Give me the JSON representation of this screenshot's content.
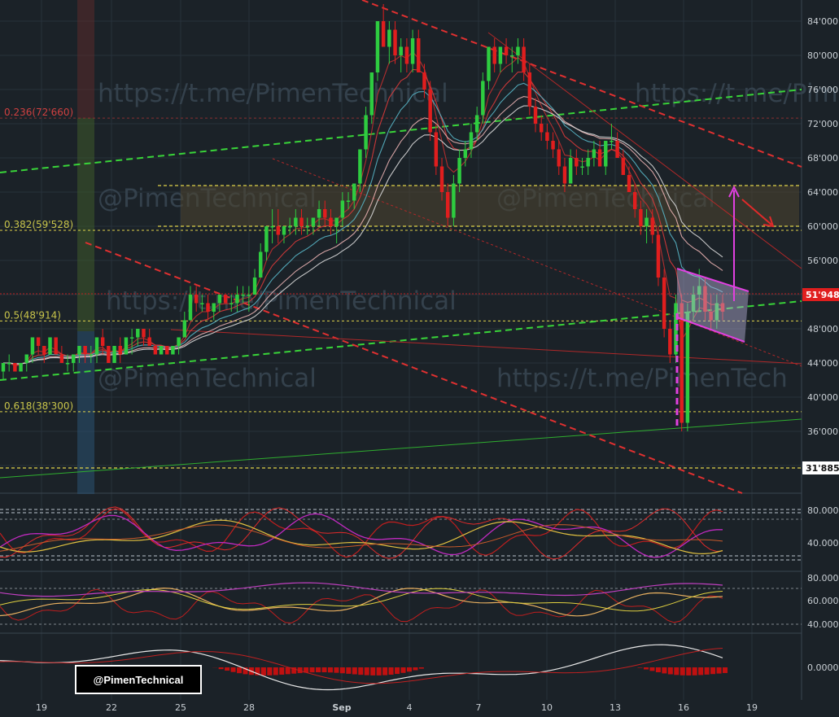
{
  "colors": {
    "bg": "#1b2228",
    "grid": "#27313a",
    "up": "#2ecc40",
    "down": "#e01e1e",
    "ema_dark": "#a01818",
    "ema_red": "#d93a3a",
    "ema_cyan": "#58b4c4",
    "ema_white": "#d8d8d8",
    "trend_green": "#39d439",
    "trend_red": "#e03030",
    "fib_yellow": "#e0d34a",
    "magenta": "#e040e0",
    "price_label": "#e01e1e",
    "support_label_bg": "#ffffff"
  },
  "watermarks": [
    "https://t.me/PimenTechnical",
    "@PimenTechnical",
    "https://t.me/PimenTechnical",
    "@PimenTechnical",
    "https://t.me/PimenTechnical",
    "@PimenTechnical",
    "https://t.me/PimenTech"
  ],
  "tag": {
    "text": "@PimenTechnical"
  },
  "chart_data": {
    "type": "candlestick",
    "price_axis": {
      "ticks": [
        "84'000",
        "80'000",
        "76'000",
        "72'000",
        "68'000",
        "64'000",
        "60'000",
        "56'000",
        "52'000",
        "48'000",
        "44'000",
        "40'000",
        "36'000"
      ],
      "ylim": [
        30000,
        86500
      ]
    },
    "time_axis": {
      "ticks": [
        "19",
        "22",
        "25",
        "28",
        "Sep",
        "4",
        "7",
        "10",
        "13",
        "16",
        "19"
      ]
    },
    "fib_levels": [
      {
        "label": "0.236(72'660)",
        "value": 72660
      },
      {
        "label": "0.382(59'528)",
        "value": 59528
      },
      {
        "label": "0.5(48'914)",
        "value": 48914
      },
      {
        "label": "0.618(38'300)",
        "value": 38300
      }
    ],
    "price_labels": {
      "current": "51'948",
      "support": "31'885"
    },
    "candles": [
      [
        43,
        44,
        42,
        44
      ],
      [
        44,
        45,
        43,
        44
      ],
      [
        44,
        44,
        43,
        43
      ],
      [
        43,
        44,
        43,
        44
      ],
      [
        44,
        45,
        43,
        45
      ],
      [
        45,
        47,
        44,
        47
      ],
      [
        47,
        47,
        45,
        46
      ],
      [
        46,
        46,
        44,
        45
      ],
      [
        45,
        47,
        45,
        47
      ],
      [
        47,
        47,
        45,
        45
      ],
      [
        45,
        46,
        44,
        44
      ],
      [
        44,
        45,
        43,
        44
      ],
      [
        44,
        45,
        43,
        45
      ],
      [
        45,
        46,
        44,
        46
      ],
      [
        46,
        46,
        44,
        45
      ],
      [
        45,
        46,
        44,
        45
      ],
      [
        45,
        47,
        44,
        47
      ],
      [
        47,
        48,
        45,
        46
      ],
      [
        46,
        46,
        44,
        44
      ],
      [
        44,
        46,
        44,
        46
      ],
      [
        46,
        47,
        44,
        45
      ],
      [
        45,
        47,
        45,
        47
      ],
      [
        47,
        48,
        45,
        47
      ],
      [
        47,
        48,
        46,
        48
      ],
      [
        48,
        48,
        46,
        47
      ],
      [
        47,
        48,
        46,
        46
      ],
      [
        46,
        46,
        45,
        45
      ],
      [
        45,
        46,
        45,
        46
      ],
      [
        46,
        46,
        45,
        45
      ],
      [
        45,
        46,
        45,
        46
      ],
      [
        46,
        47,
        45,
        47
      ],
      [
        47,
        50,
        47,
        49
      ],
      [
        49,
        53,
        49,
        52
      ],
      [
        52,
        53,
        50,
        51
      ],
      [
        51,
        52,
        50,
        51
      ],
      [
        51,
        52,
        49,
        50
      ],
      [
        50,
        51,
        49,
        51
      ],
      [
        51,
        52,
        50,
        52
      ],
      [
        52,
        52,
        51,
        51
      ],
      [
        51,
        52,
        50,
        51
      ],
      [
        51,
        53,
        50,
        52
      ],
      [
        52,
        53,
        51,
        52
      ],
      [
        52,
        53,
        50,
        52
      ],
      [
        52,
        55,
        52,
        54
      ],
      [
        54,
        58,
        54,
        57
      ],
      [
        57,
        60,
        56,
        60
      ],
      [
        60,
        62,
        58,
        60
      ],
      [
        60,
        62,
        58,
        59
      ],
      [
        59,
        60,
        58,
        60
      ],
      [
        60,
        61,
        59,
        60
      ],
      [
        60,
        62,
        59,
        61
      ],
      [
        61,
        62,
        59,
        60
      ],
      [
        60,
        61,
        59,
        60
      ],
      [
        60,
        61,
        59,
        61
      ],
      [
        61,
        63,
        60,
        62
      ],
      [
        62,
        63,
        60,
        61
      ],
      [
        61,
        62,
        59,
        60
      ],
      [
        60,
        61,
        58,
        61
      ],
      [
        61,
        64,
        60,
        63
      ],
      [
        63,
        64,
        62,
        63
      ],
      [
        63,
        65,
        62,
        65
      ],
      [
        65,
        69,
        64,
        69
      ],
      [
        69,
        74,
        68,
        73
      ],
      [
        73,
        78,
        72,
        78
      ],
      [
        78,
        84,
        77,
        84
      ],
      [
        84,
        86,
        81,
        81
      ],
      [
        81,
        84,
        79,
        83
      ],
      [
        83,
        84,
        79,
        80
      ],
      [
        80,
        82,
        78,
        81
      ],
      [
        81,
        82,
        78,
        79
      ],
      [
        79,
        83,
        78,
        82
      ],
      [
        82,
        83,
        78,
        78
      ],
      [
        78,
        79,
        75,
        76
      ],
      [
        76,
        77,
        70,
        71
      ],
      [
        71,
        72,
        66,
        67
      ],
      [
        67,
        68,
        63,
        64
      ],
      [
        64,
        65,
        60,
        61
      ],
      [
        61,
        66,
        60,
        65
      ],
      [
        65,
        69,
        64,
        68
      ],
      [
        68,
        70,
        67,
        69
      ],
      [
        69,
        72,
        68,
        71
      ],
      [
        71,
        74,
        70,
        73
      ],
      [
        73,
        78,
        72,
        77
      ],
      [
        77,
        81,
        76,
        81
      ],
      [
        81,
        82,
        78,
        79
      ],
      [
        79,
        81,
        78,
        81
      ],
      [
        81,
        82,
        79,
        80
      ],
      [
        80,
        81,
        78,
        80
      ],
      [
        80,
        82,
        79,
        81
      ],
      [
        81,
        82,
        77,
        78
      ],
      [
        78,
        79,
        73,
        74
      ],
      [
        74,
        75,
        71,
        72
      ],
      [
        72,
        73,
        70,
        71
      ],
      [
        71,
        72,
        69,
        70
      ],
      [
        70,
        71,
        68,
        69
      ],
      [
        69,
        70,
        66,
        67
      ],
      [
        67,
        68,
        64,
        65
      ],
      [
        65,
        69,
        65,
        68
      ],
      [
        68,
        69,
        66,
        67
      ],
      [
        67,
        68,
        66,
        67
      ],
      [
        67,
        69,
        66,
        68
      ],
      [
        68,
        70,
        67,
        69
      ],
      [
        69,
        70,
        67,
        67
      ],
      [
        67,
        70,
        66,
        70
      ],
      [
        70,
        72,
        69,
        70
      ],
      [
        70,
        71,
        68,
        68
      ],
      [
        68,
        69,
        66,
        66
      ],
      [
        66,
        67,
        64,
        64
      ],
      [
        64,
        65,
        61,
        62
      ],
      [
        62,
        63,
        59,
        60
      ],
      [
        60,
        62,
        58,
        61
      ],
      [
        61,
        62,
        58,
        59
      ],
      [
        59,
        60,
        53,
        54
      ],
      [
        54,
        55,
        47,
        48
      ],
      [
        48,
        49,
        44,
        45
      ],
      [
        45,
        52,
        44,
        51
      ],
      [
        51,
        52,
        36,
        37
      ],
      [
        37,
        51,
        36,
        50
      ],
      [
        50,
        53,
        49,
        52
      ],
      [
        52,
        55,
        50,
        53
      ],
      [
        53,
        54,
        49,
        50
      ],
      [
        50,
        52,
        48,
        49
      ],
      [
        49,
        52,
        48,
        51
      ],
      [
        51,
        52,
        49,
        50
      ]
    ]
  }
}
